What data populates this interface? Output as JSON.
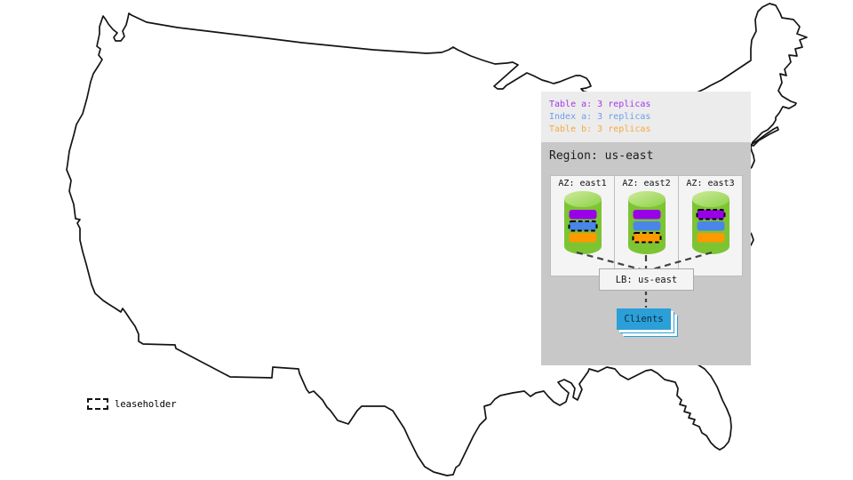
{
  "replica_legend": {
    "items": [
      {
        "key": "table-a",
        "label": "Table a: 3 replicas",
        "color": "#a238e8"
      },
      {
        "key": "index-a",
        "label": "Index a: 3 replicas",
        "color": "#6d9eeb"
      },
      {
        "key": "table-b",
        "label": "Table b: 3 replicas",
        "color": "#f5a942"
      }
    ]
  },
  "region": {
    "title": "Region: us-east",
    "node_color": "#7dc433",
    "azs": [
      {
        "label": "AZ: east1",
        "replicas": [
          {
            "name": "table-a",
            "color": "#9900e8",
            "leaseholder": false
          },
          {
            "name": "index-a",
            "color": "#4a86e8",
            "leaseholder": true
          },
          {
            "name": "table-b",
            "color": "#ff9900",
            "leaseholder": false
          }
        ]
      },
      {
        "label": "AZ: east2",
        "replicas": [
          {
            "name": "table-a",
            "color": "#9900e8",
            "leaseholder": false
          },
          {
            "name": "index-a",
            "color": "#4a86e8",
            "leaseholder": false
          },
          {
            "name": "table-b",
            "color": "#ff9900",
            "leaseholder": true
          }
        ]
      },
      {
        "label": "AZ: east3",
        "replicas": [
          {
            "name": "table-a",
            "color": "#9900e8",
            "leaseholder": true
          },
          {
            "name": "index-a",
            "color": "#4a86e8",
            "leaseholder": false
          },
          {
            "name": "table-b",
            "color": "#ff9900",
            "leaseholder": false
          }
        ]
      }
    ],
    "load_balancer": {
      "label": "LB: us-east"
    },
    "clients": {
      "label": "Clients",
      "color": "#2b9fd8"
    }
  },
  "map": {
    "leaseholder_label": "leaseholder",
    "outline_color": "#141414"
  }
}
